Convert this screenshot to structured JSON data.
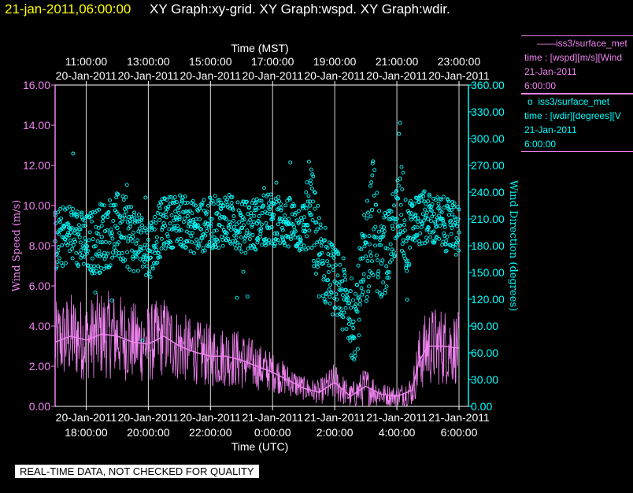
{
  "header": {
    "date": "21-jan-2011,06:00:00",
    "title": "XY Graph:xy-grid.  XY Graph:wspd.  XY Graph:wdir."
  },
  "footer": {
    "warning": "REAL-TIME DATA, NOT CHECKED FOR QUALITY"
  },
  "colors": {
    "wspd": "#ee82ee",
    "wdir": "#00ffff",
    "grid": "#ffffff",
    "date": "#ffff00"
  },
  "legend": {
    "wspd": {
      "symbol": "——",
      "source": "iss3/surface_met",
      "desc": "time : [wspd][m/s][Wind",
      "date": "21-Jan-2011",
      "time": "6:00:00"
    },
    "wdir": {
      "symbol": "o",
      "source": "iss3/surface_met",
      "desc": "time : [wdir][degrees][V",
      "date": "21-Jan-2011",
      "time": "6:00:00"
    }
  },
  "chart_data": {
    "type": "line",
    "x_top_label": "Time (MST)",
    "x_bottom_label": "Time (UTC)",
    "x_range_utc_hours": [
      17.0,
      30.0
    ],
    "x_top_ticks": [
      {
        "time": "11:00:00",
        "date": "20-Jan-2011"
      },
      {
        "time": "13:00:00",
        "date": "20-Jan-2011"
      },
      {
        "time": "15:00:00",
        "date": "20-Jan-2011"
      },
      {
        "time": "17:00:00",
        "date": "20-Jan-2011"
      },
      {
        "time": "19:00:00",
        "date": "20-Jan-2011"
      },
      {
        "time": "21:00:00",
        "date": "20-Jan-2011"
      },
      {
        "time": "23:00:00",
        "date": "20-Jan-2011"
      }
    ],
    "x_bottom_ticks": [
      {
        "date": "20-Jan-2011",
        "time": "18:00:00"
      },
      {
        "date": "20-Jan-2011",
        "time": "20:00:00"
      },
      {
        "date": "20-Jan-2011",
        "time": "22:00:00"
      },
      {
        "date": "21-Jan-2011",
        "time": "0:00:00"
      },
      {
        "date": "21-Jan-2011",
        "time": "2:00:00"
      },
      {
        "date": "21-Jan-2011",
        "time": "4:00:00"
      },
      {
        "date": "21-Jan-2011",
        "time": "6:00:00"
      }
    ],
    "y_left": {
      "label": "Wind Speed (m/s)",
      "range": [
        0,
        16
      ],
      "ticks": [
        "0.00",
        "2.00",
        "4.00",
        "6.00",
        "8.00",
        "10.00",
        "12.00",
        "14.00",
        "16.00"
      ]
    },
    "y_right": {
      "label": "Wind Direction (degrees)",
      "range": [
        0,
        360
      ],
      "ticks": [
        "0.00",
        "30.00",
        "60.00",
        "90.00",
        "120.00",
        "150.00",
        "180.00",
        "210.00",
        "240.00",
        "270.00",
        "300.00",
        "330.00",
        "360.00"
      ]
    },
    "grid": "vertical",
    "series": [
      {
        "name": "wspd",
        "axis": "left",
        "style": "line",
        "x": [
          17.0,
          17.5,
          18.0,
          18.5,
          19.0,
          19.5,
          20.0,
          20.5,
          21.0,
          21.5,
          22.0,
          22.5,
          23.0,
          23.5,
          24.0,
          24.5,
          25.0,
          25.5,
          26.0,
          26.5,
          27.0,
          27.5,
          28.0,
          28.5,
          28.7,
          29.0,
          29.5,
          30.0
        ],
        "y": [
          3.2,
          3.5,
          3.3,
          3.6,
          3.5,
          3.2,
          3.1,
          3.5,
          3.0,
          2.7,
          2.5,
          2.5,
          2.3,
          2.0,
          1.7,
          1.3,
          0.9,
          0.7,
          1.2,
          0.5,
          1.0,
          0.6,
          0.5,
          0.8,
          2.2,
          3.0,
          3.0,
          2.9
        ],
        "spread": [
          2.0,
          2.2,
          2.0,
          2.2,
          2.2,
          2.0,
          2.0,
          2.0,
          1.8,
          1.6,
          1.6,
          1.5,
          1.5,
          1.2,
          1.0,
          0.8,
          0.6,
          0.6,
          1.0,
          0.6,
          1.0,
          0.6,
          0.5,
          0.8,
          1.6,
          2.0,
          2.0,
          1.8
        ]
      },
      {
        "name": "wdir",
        "axis": "right",
        "style": "markers",
        "x": [
          17.0,
          17.5,
          18.0,
          18.5,
          19.0,
          19.5,
          20.0,
          20.5,
          21.0,
          21.5,
          22.0,
          22.5,
          23.0,
          23.5,
          24.0,
          24.5,
          25.0,
          25.2,
          25.5,
          26.0,
          26.3,
          26.6,
          26.9,
          27.2,
          27.5,
          28.0,
          28.1,
          28.3,
          28.6,
          29.0,
          29.5,
          30.0
        ],
        "y": [
          185,
          195,
          180,
          190,
          200,
          190,
          175,
          205,
          210,
          200,
          205,
          210,
          200,
          205,
          210,
          205,
          200,
          225,
          170,
          140,
          120,
          95,
          140,
          220,
          160,
          210,
          255,
          185,
          210,
          210,
          205,
          195
        ],
        "spread": [
          35,
          35,
          35,
          40,
          40,
          40,
          35,
          30,
          30,
          30,
          30,
          30,
          30,
          30,
          30,
          30,
          30,
          60,
          50,
          40,
          45,
          45,
          60,
          70,
          50,
          40,
          80,
          40,
          30,
          30,
          30,
          30
        ]
      }
    ]
  }
}
